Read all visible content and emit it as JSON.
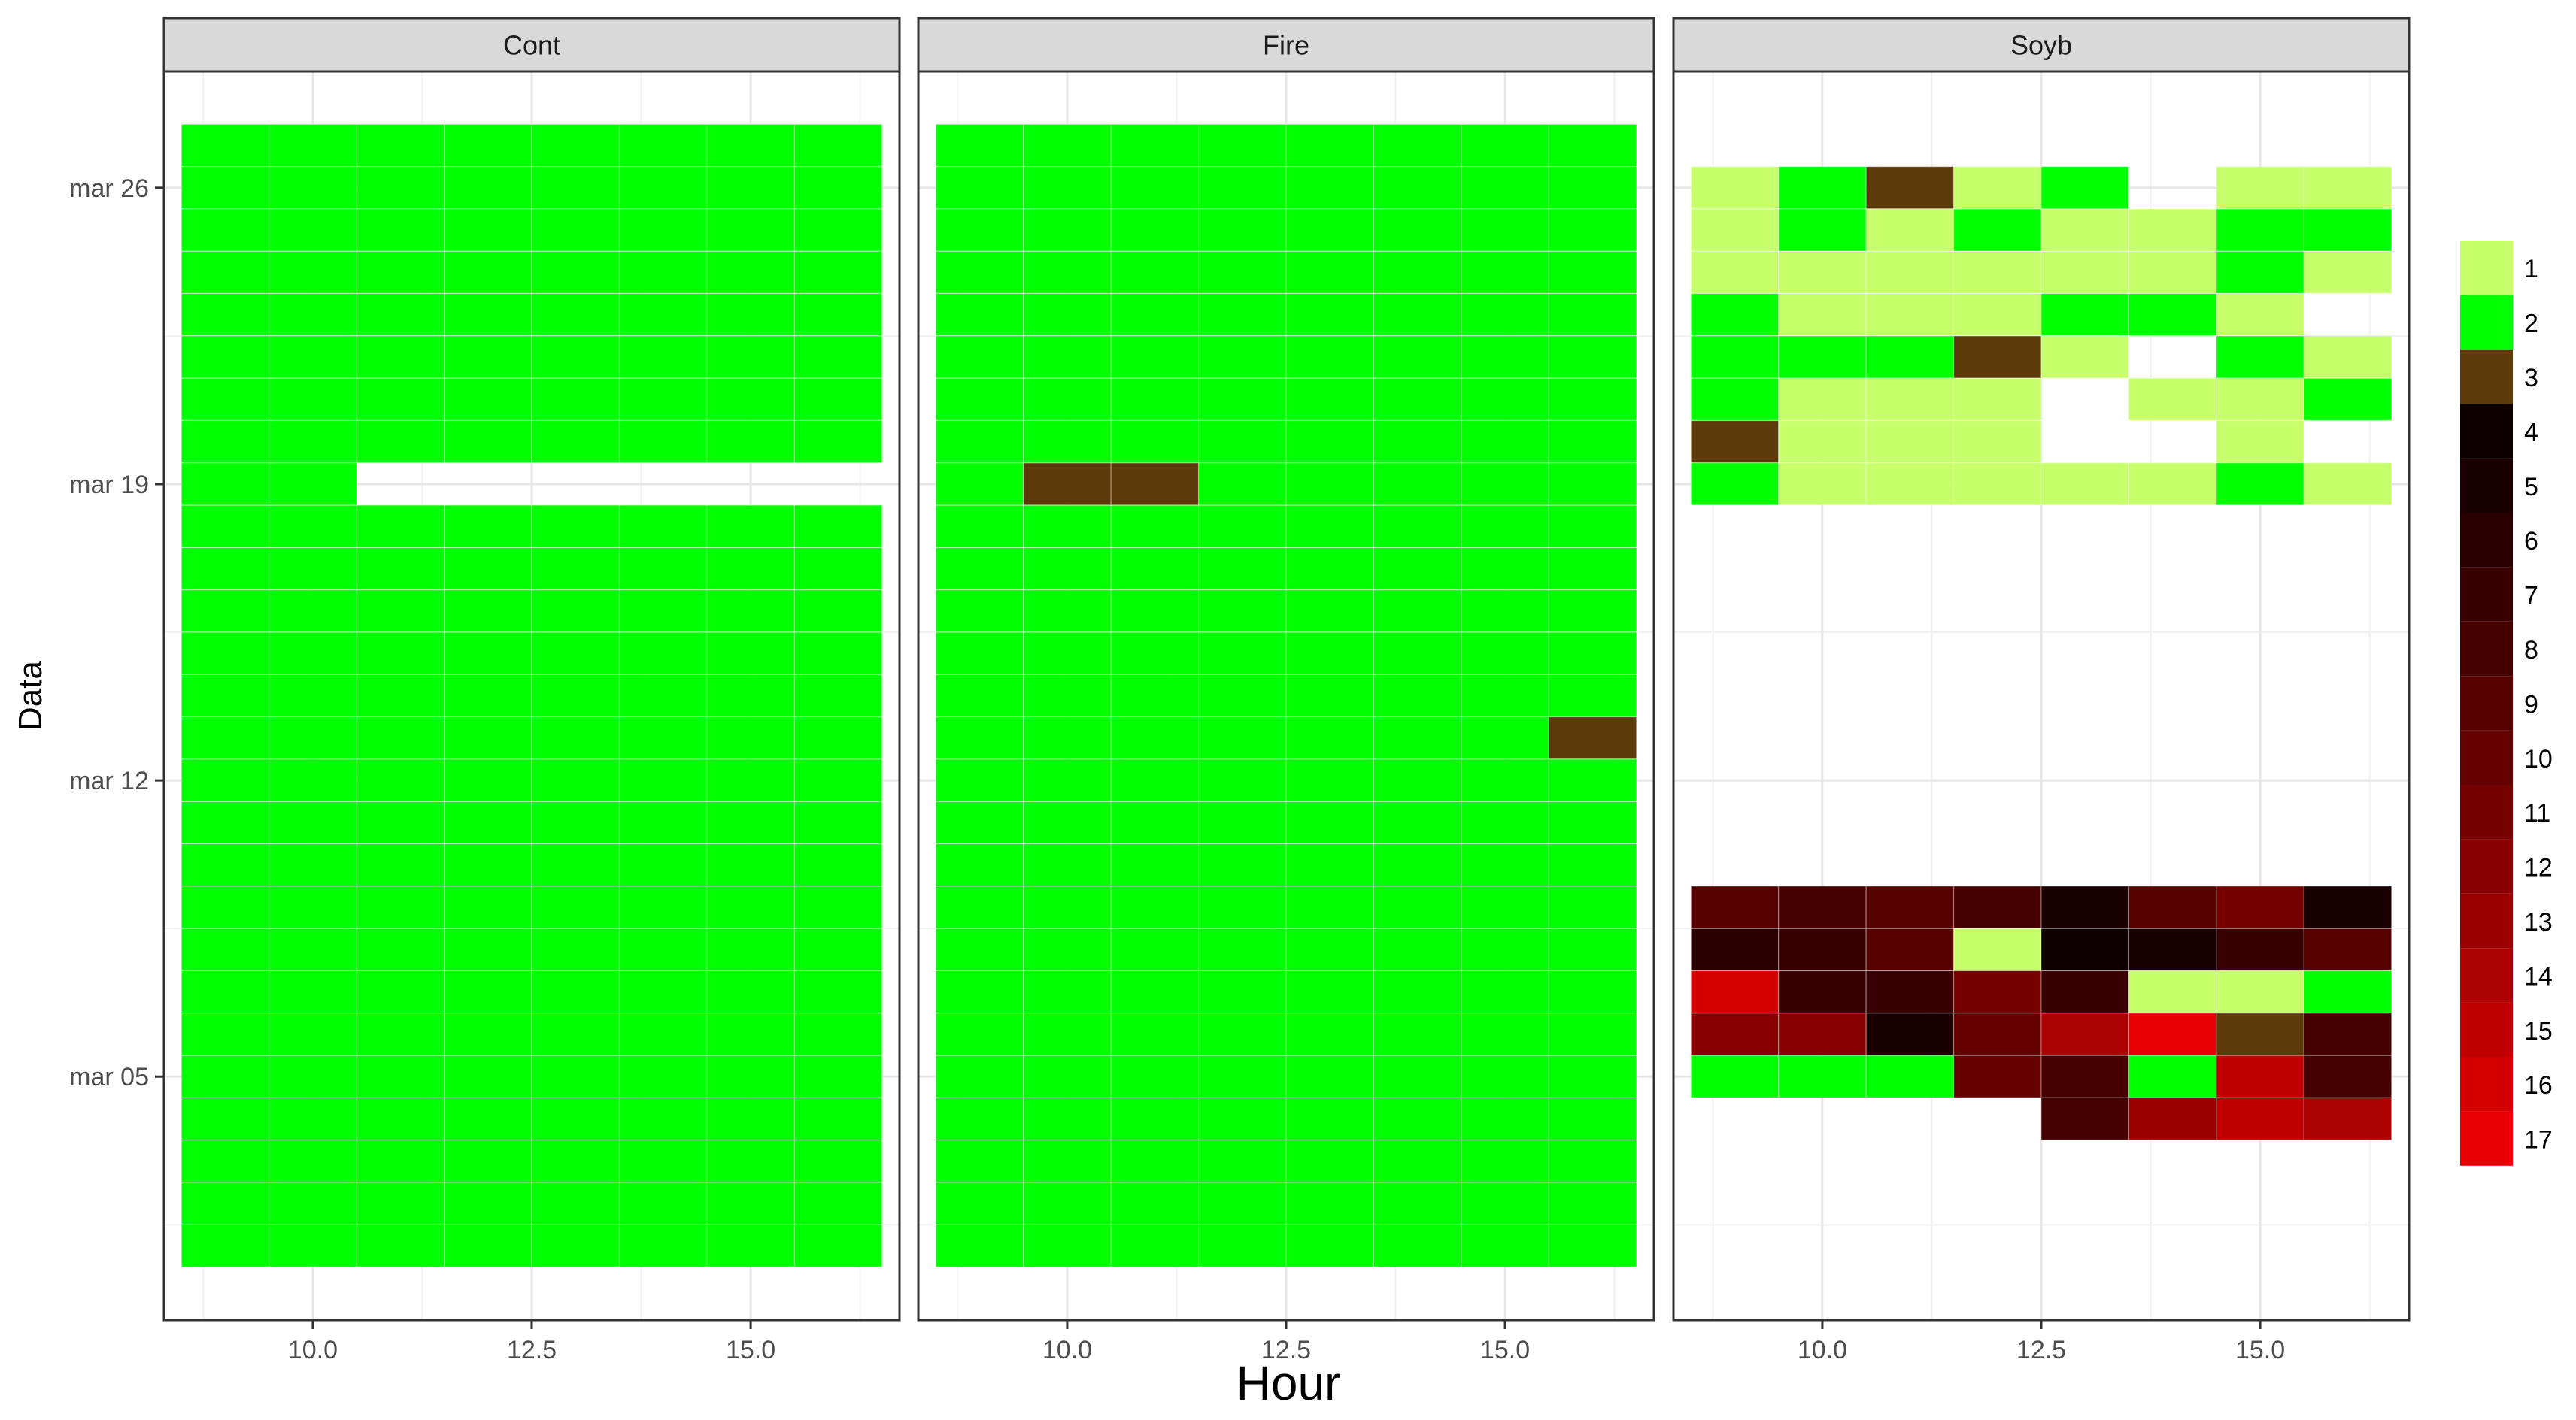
{
  "chart_data": {
    "type": "heatmap",
    "title": "",
    "xlabel": "Hour",
    "ylabel": "Data",
    "x_ticks": [
      "10.0",
      "12.5",
      "15.0"
    ],
    "x_tick_values": [
      10.0,
      12.5,
      15.0
    ],
    "xlim": [
      8.3,
      16.7
    ],
    "y_ticks": [
      "mar 05",
      "mar 12",
      "mar 19",
      "mar 26"
    ],
    "y_tick_days": [
      5,
      12,
      19,
      26
    ],
    "y_grid_days": [
      1.5,
      8.5,
      15.5,
      22.5,
      29.5
    ],
    "ylim": [
      -0.75,
      28.75
    ],
    "x_hours": [
      9,
      10,
      11,
      12,
      13,
      14,
      15,
      16
    ],
    "grid": true,
    "legend_position": "right",
    "legend": {
      "levels": [
        "1",
        "2",
        "3",
        "4",
        "5",
        "6",
        "7",
        "8",
        "9",
        "10",
        "11",
        "12",
        "13",
        "14",
        "15",
        "16",
        "17"
      ],
      "colors": [
        "#C6FF6B",
        "#00FF00",
        "#5C3A0A",
        "#0E0000",
        "#1A0000",
        "#290000",
        "#380000",
        "#470000",
        "#560000",
        "#650000",
        "#740000",
        "#880000",
        "#9A0000",
        "#AD0000",
        "#C00000",
        "#D40000",
        "#E80000"
      ]
    },
    "panels": [
      {
        "name": "Cont",
        "first_day": 1,
        "rows": [
          [
            2,
            2,
            2,
            2,
            2,
            2,
            2,
            2
          ],
          [
            2,
            2,
            2,
            2,
            2,
            2,
            2,
            2
          ],
          [
            2,
            2,
            2,
            2,
            2,
            2,
            2,
            2
          ],
          [
            2,
            2,
            2,
            2,
            2,
            2,
            2,
            2
          ],
          [
            2,
            2,
            2,
            2,
            2,
            2,
            2,
            2
          ],
          [
            2,
            2,
            2,
            2,
            2,
            2,
            2,
            2
          ],
          [
            2,
            2,
            2,
            2,
            2,
            2,
            2,
            2
          ],
          [
            2,
            2,
            2,
            2,
            2,
            2,
            2,
            2
          ],
          [
            2,
            2,
            2,
            2,
            2,
            2,
            2,
            2
          ],
          [
            2,
            2,
            2,
            2,
            2,
            2,
            2,
            2
          ],
          [
            2,
            2,
            2,
            2,
            2,
            2,
            2,
            2
          ],
          [
            2,
            2,
            2,
            2,
            2,
            2,
            2,
            2
          ],
          [
            2,
            2,
            2,
            2,
            2,
            2,
            2,
            2
          ],
          [
            2,
            2,
            2,
            2,
            2,
            2,
            2,
            2
          ],
          [
            2,
            2,
            2,
            2,
            2,
            2,
            2,
            2
          ],
          [
            2,
            2,
            2,
            2,
            2,
            2,
            2,
            2
          ],
          [
            2,
            2,
            2,
            2,
            2,
            2,
            2,
            2
          ],
          [
            2,
            2,
            2,
            2,
            2,
            2,
            2,
            2
          ],
          [
            2,
            2,
            0,
            0,
            0,
            0,
            0,
            0
          ],
          [
            2,
            2,
            2,
            2,
            2,
            2,
            2,
            2
          ],
          [
            2,
            2,
            2,
            2,
            2,
            2,
            2,
            2
          ],
          [
            2,
            2,
            2,
            2,
            2,
            2,
            2,
            2
          ],
          [
            2,
            2,
            2,
            2,
            2,
            2,
            2,
            2
          ],
          [
            2,
            2,
            2,
            2,
            2,
            2,
            2,
            2
          ],
          [
            2,
            2,
            2,
            2,
            2,
            2,
            2,
            2
          ],
          [
            2,
            2,
            2,
            2,
            2,
            2,
            2,
            2
          ],
          [
            2,
            2,
            2,
            2,
            2,
            2,
            2,
            2
          ]
        ]
      },
      {
        "name": "Fire",
        "first_day": 1,
        "rows": [
          [
            2,
            2,
            2,
            2,
            2,
            2,
            2,
            2
          ],
          [
            2,
            2,
            2,
            2,
            2,
            2,
            2,
            2
          ],
          [
            2,
            2,
            2,
            2,
            2,
            2,
            2,
            2
          ],
          [
            2,
            2,
            2,
            2,
            2,
            2,
            2,
            2
          ],
          [
            2,
            2,
            2,
            2,
            2,
            2,
            2,
            2
          ],
          [
            2,
            2,
            2,
            2,
            2,
            2,
            2,
            2
          ],
          [
            2,
            2,
            2,
            2,
            2,
            2,
            2,
            2
          ],
          [
            2,
            2,
            2,
            2,
            2,
            2,
            2,
            2
          ],
          [
            2,
            2,
            2,
            2,
            2,
            2,
            2,
            2
          ],
          [
            2,
            2,
            2,
            2,
            2,
            2,
            2,
            2
          ],
          [
            2,
            2,
            2,
            2,
            2,
            2,
            2,
            2
          ],
          [
            2,
            2,
            2,
            2,
            2,
            2,
            2,
            2
          ],
          [
            2,
            2,
            2,
            2,
            2,
            2,
            2,
            3
          ],
          [
            2,
            2,
            2,
            2,
            2,
            2,
            2,
            2
          ],
          [
            2,
            2,
            2,
            2,
            2,
            2,
            2,
            2
          ],
          [
            2,
            2,
            2,
            2,
            2,
            2,
            2,
            2
          ],
          [
            2,
            2,
            2,
            2,
            2,
            2,
            2,
            2
          ],
          [
            2,
            2,
            2,
            2,
            2,
            2,
            2,
            2
          ],
          [
            2,
            3,
            3,
            2,
            2,
            2,
            2,
            2
          ],
          [
            2,
            2,
            2,
            2,
            2,
            2,
            2,
            2
          ],
          [
            2,
            2,
            2,
            2,
            2,
            2,
            2,
            2
          ],
          [
            2,
            2,
            2,
            2,
            2,
            2,
            2,
            2
          ],
          [
            2,
            2,
            2,
            2,
            2,
            2,
            2,
            2
          ],
          [
            2,
            2,
            2,
            2,
            2,
            2,
            2,
            2
          ],
          [
            2,
            2,
            2,
            2,
            2,
            2,
            2,
            2
          ],
          [
            2,
            2,
            2,
            2,
            2,
            2,
            2,
            2
          ],
          [
            2,
            2,
            2,
            2,
            2,
            2,
            2,
            2
          ]
        ]
      },
      {
        "name": "Soyb",
        "first_day": 4,
        "rows": [
          [
            0,
            0,
            0,
            0,
            8,
            13,
            15,
            14
          ],
          [
            2,
            2,
            2,
            10,
            8,
            2,
            15,
            8
          ],
          [
            12,
            12,
            5,
            10,
            14,
            17,
            3,
            8
          ],
          [
            16,
            7,
            7,
            11,
            7,
            1,
            1,
            2
          ],
          [
            6,
            7,
            9,
            1,
            4,
            5,
            7,
            9
          ],
          [
            9,
            8,
            9,
            8,
            5,
            9,
            11,
            5
          ],
          [
            0,
            0,
            0,
            0,
            0,
            0,
            0,
            0
          ],
          [
            0,
            0,
            0,
            0,
            0,
            0,
            0,
            0
          ],
          [
            0,
            0,
            0,
            0,
            0,
            0,
            0,
            0
          ],
          [
            0,
            0,
            0,
            0,
            0,
            0,
            0,
            0
          ],
          [
            0,
            0,
            0,
            0,
            0,
            0,
            0,
            0
          ],
          [
            0,
            0,
            0,
            0,
            0,
            0,
            0,
            0
          ],
          [
            0,
            0,
            0,
            0,
            0,
            0,
            0,
            0
          ],
          [
            0,
            0,
            0,
            0,
            0,
            0,
            0,
            0
          ],
          [
            0,
            0,
            0,
            0,
            0,
            0,
            0,
            0
          ],
          [
            2,
            1,
            1,
            1,
            1,
            1,
            2,
            1
          ],
          [
            3,
            1,
            1,
            1,
            0,
            0,
            1,
            0
          ],
          [
            2,
            1,
            1,
            1,
            0,
            1,
            1,
            2
          ],
          [
            2,
            2,
            2,
            3,
            1,
            0,
            2,
            1
          ],
          [
            2,
            1,
            1,
            1,
            2,
            2,
            1,
            0
          ],
          [
            1,
            1,
            1,
            1,
            1,
            1,
            2,
            1
          ],
          [
            1,
            2,
            1,
            2,
            1,
            1,
            2,
            2
          ],
          [
            1,
            2,
            3,
            1,
            2,
            0,
            1,
            1
          ]
        ]
      }
    ]
  }
}
